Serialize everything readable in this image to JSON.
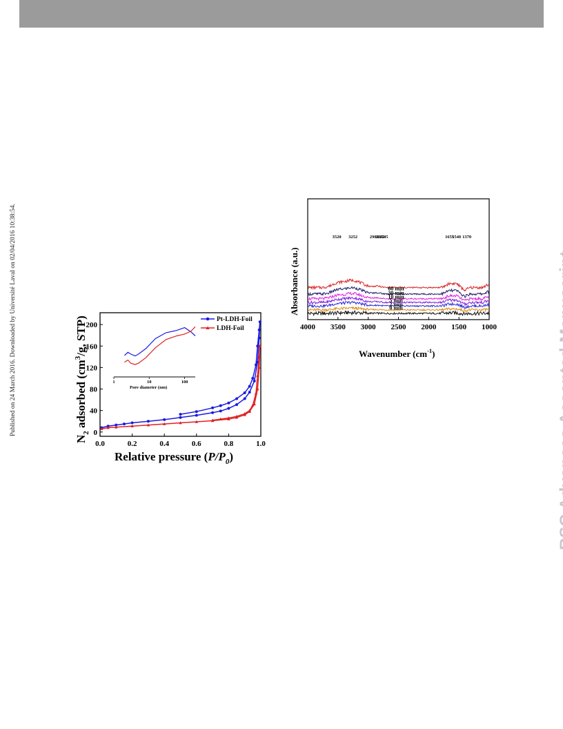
{
  "header": {
    "bar_color": "#9b9b9b"
  },
  "side_note": "Published on 24 March 2016. Downloaded by Université Laval on 02/04/2016 10:38:54.",
  "watermark": "RSC Advances Accepted Manuscript",
  "chart_data": [
    {
      "type": "line",
      "ylabel_main": "N",
      "ylabel_sub": "2",
      "ylabel_rest1": " adsorbed (cm",
      "ylabel_sup": "3",
      "ylabel_rest2": "/g, STP)",
      "xlabel_main": "Relative pressure (",
      "xlabel_italic": "P/P",
      "xlabel_italic_sub": "0",
      "xlabel_end": ")",
      "xlim": [
        0,
        1
      ],
      "ylim": [
        -8,
        222
      ],
      "xticks": [
        "0.0",
        "0.2",
        "0.4",
        "0.6",
        "0.8",
        "1.0"
      ],
      "xtick_values": [
        0,
        0.2,
        0.4,
        0.6,
        0.8,
        1.0
      ],
      "yticks": [
        "0",
        "40",
        "80",
        "120",
        "160",
        "200"
      ],
      "ytick_values": [
        0,
        40,
        80,
        120,
        160,
        200
      ],
      "legend_position": "top-right",
      "series": [
        {
          "name": "Pt-LDH-Foil",
          "color": "#1a1adf",
          "adsorption": [
            [
              0.01,
              8
            ],
            [
              0.05,
              11
            ],
            [
              0.1,
              13
            ],
            [
              0.15,
              15
            ],
            [
              0.2,
              17
            ],
            [
              0.3,
              20
            ],
            [
              0.4,
              23
            ],
            [
              0.5,
              27
            ],
            [
              0.6,
              31
            ],
            [
              0.7,
              36
            ],
            [
              0.75,
              39
            ],
            [
              0.8,
              44
            ],
            [
              0.85,
              51
            ],
            [
              0.9,
              62
            ],
            [
              0.93,
              74
            ],
            [
              0.96,
              95
            ],
            [
              0.98,
              130
            ],
            [
              0.99,
              175
            ],
            [
              0.995,
              205
            ]
          ],
          "desorption": [
            [
              0.995,
              205
            ],
            [
              0.99,
              190
            ],
            [
              0.98,
              160
            ],
            [
              0.97,
              125
            ],
            [
              0.95,
              100
            ],
            [
              0.93,
              85
            ],
            [
              0.9,
              73
            ],
            [
              0.85,
              62
            ],
            [
              0.8,
              54
            ],
            [
              0.75,
              49
            ],
            [
              0.7,
              45
            ],
            [
              0.6,
              38
            ],
            [
              0.5,
              33
            ]
          ]
        },
        {
          "name": "LDH-Foil",
          "color": "#e02020",
          "adsorption": [
            [
              0.01,
              6
            ],
            [
              0.05,
              8
            ],
            [
              0.1,
              9
            ],
            [
              0.2,
              11
            ],
            [
              0.3,
              13
            ],
            [
              0.4,
              15
            ],
            [
              0.5,
              17
            ],
            [
              0.6,
              19
            ],
            [
              0.7,
              21
            ],
            [
              0.8,
              24
            ],
            [
              0.85,
              27
            ],
            [
              0.9,
              32
            ],
            [
              0.93,
              38
            ],
            [
              0.96,
              52
            ],
            [
              0.98,
              80
            ],
            [
              0.99,
              120
            ],
            [
              0.995,
              160
            ]
          ],
          "desorption": [
            [
              0.995,
              160
            ],
            [
              0.99,
              140
            ],
            [
              0.98,
              105
            ],
            [
              0.97,
              72
            ],
            [
              0.95,
              50
            ],
            [
              0.93,
              40
            ],
            [
              0.9,
              34
            ],
            [
              0.85,
              29
            ],
            [
              0.8,
              26
            ],
            [
              0.75,
              24
            ],
            [
              0.7,
              22
            ]
          ]
        }
      ],
      "inset": {
        "xlabel": "Pore diameter (nm)",
        "xscale": "log",
        "xlim": [
          1,
          200
        ],
        "xticks": [
          "1",
          "10",
          "100"
        ],
        "xtick_values": [
          1,
          10,
          100
        ],
        "series": [
          {
            "name": "Pt-LDH-Foil",
            "color": "#1a1adf",
            "points": [
              [
                2,
                0.35
              ],
              [
                2.5,
                0.42
              ],
              [
                3,
                0.38
              ],
              [
                4,
                0.34
              ],
              [
                5,
                0.38
              ],
              [
                8,
                0.5
              ],
              [
                15,
                0.72
              ],
              [
                30,
                0.85
              ],
              [
                60,
                0.9
              ],
              [
                100,
                0.96
              ],
              [
                150,
                0.87
              ],
              [
                200,
                0.78
              ]
            ]
          },
          {
            "name": "LDH-Foil",
            "color": "#e02020",
            "points": [
              [
                2,
                0.2
              ],
              [
                2.5,
                0.25
              ],
              [
                3,
                0.18
              ],
              [
                4,
                0.15
              ],
              [
                5,
                0.18
              ],
              [
                8,
                0.3
              ],
              [
                15,
                0.52
              ],
              [
                30,
                0.7
              ],
              [
                60,
                0.78
              ],
              [
                100,
                0.82
              ],
              [
                150,
                0.88
              ],
              [
                200,
                0.98
              ]
            ]
          }
        ]
      }
    },
    {
      "type": "line",
      "ylabel": "Absorbance (a.u.)",
      "xlabel_main": "Wavenumber (cm",
      "xlabel_sup": "-1",
      "xlabel_end": ")",
      "xlim": [
        4000,
        1000
      ],
      "xticks": [
        "4000",
        "3500",
        "3000",
        "2500",
        "2000",
        "1500",
        "1000"
      ],
      "xtick_values": [
        4000,
        3500,
        3000,
        2500,
        2000,
        1500,
        1000
      ],
      "series": [
        {
          "name": "0 min",
          "color": "#111111",
          "offset": 0,
          "scale": 0.15
        },
        {
          "name": "2 min",
          "color": "#e08a10",
          "offset": 0.7,
          "scale": 0.35
        },
        {
          "name": "5 min",
          "color": "#2a2ad8",
          "offset": 1.5,
          "scale": 0.7
        },
        {
          "name": "10 min",
          "color": "#7b1fe0",
          "offset": 2.2,
          "scale": 0.9
        },
        {
          "name": "30 min",
          "color": "#e020e0",
          "offset": 2.95,
          "scale": 1.05
        },
        {
          "name": "60 min",
          "color": "#1a1a66",
          "offset": 3.9,
          "scale": 1.25
        },
        {
          "name": "",
          "color": "#d82424",
          "offset": 5.2,
          "scale": 1.45
        }
      ],
      "peaks": [
        {
          "label": "3520",
          "x": 3520
        },
        {
          "label": "3252",
          "x": 3252
        },
        {
          "label": "2901",
          "x": 2901
        },
        {
          "label": "2802",
          "x": 2802
        },
        {
          "label": "2745",
          "x": 2745
        },
        {
          "label": "1655",
          "x": 1655
        },
        {
          "label": "1540",
          "x": 1540
        },
        {
          "label": "1370",
          "x": 1370
        }
      ]
    }
  ]
}
